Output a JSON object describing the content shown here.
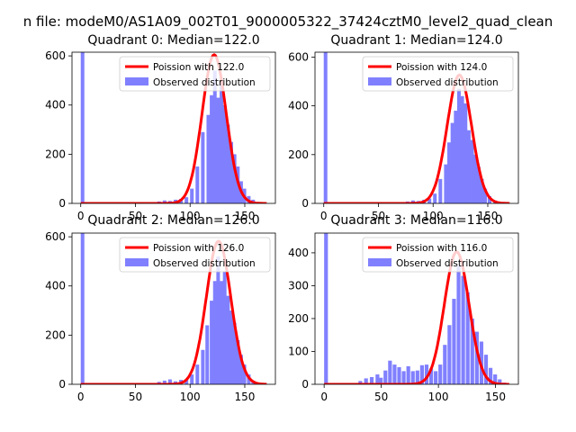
{
  "figure": {
    "suptitle": "n file: modeM0/AS1A09_002T01_9000005322_37424cztM0_level2_quad_clean"
  },
  "chart_data": [
    {
      "type": "bar",
      "title": "Quadrant 0: Median=122.0",
      "xlim": [
        -8,
        178
      ],
      "ylim": [
        0,
        615
      ],
      "xticks": [
        0,
        50,
        100,
        150
      ],
      "yticks": [
        0,
        200,
        400,
        600
      ],
      "legend_position": "top-right",
      "poisson_mean": 122.0,
      "legend": [
        "Poission with 122.0",
        "Observed distribution"
      ],
      "colors": {
        "line": "#ff0000",
        "bars": "#8080ff"
      },
      "bins": [
        [
          0,
          620
        ],
        [
          70,
          8
        ],
        [
          75,
          12
        ],
        [
          80,
          10
        ],
        [
          85,
          15
        ],
        [
          90,
          18
        ],
        [
          95,
          25
        ],
        [
          100,
          60
        ],
        [
          105,
          150
        ],
        [
          110,
          290
        ],
        [
          115,
          360
        ],
        [
          118,
          440
        ],
        [
          121,
          540
        ],
        [
          124,
          430
        ],
        [
          127,
          500
        ],
        [
          130,
          400
        ],
        [
          133,
          320
        ],
        [
          136,
          250
        ],
        [
          139,
          200
        ],
        [
          142,
          150
        ],
        [
          145,
          90
        ],
        [
          148,
          60
        ],
        [
          152,
          30
        ],
        [
          156,
          15
        ],
        [
          160,
          5
        ]
      ]
    },
    {
      "type": "bar",
      "title": "Quadrant 1: Median=124.0",
      "xlim": [
        -8,
        178
      ],
      "ylim": [
        0,
        620
      ],
      "xticks": [
        0,
        50,
        100,
        150
      ],
      "yticks": [
        0,
        200,
        400,
        600
      ],
      "legend_position": "top-right",
      "poisson_mean": 124.0,
      "legend": [
        "Poission with 124.0",
        "Observed distribution"
      ],
      "colors": {
        "line": "#ff0000",
        "bars": "#8080ff"
      },
      "bins": [
        [
          0,
          620
        ],
        [
          70,
          5
        ],
        [
          75,
          8
        ],
        [
          80,
          12
        ],
        [
          85,
          10
        ],
        [
          90,
          15
        ],
        [
          95,
          20
        ],
        [
          100,
          40
        ],
        [
          105,
          100
        ],
        [
          110,
          160
        ],
        [
          113,
          250
        ],
        [
          116,
          330
        ],
        [
          119,
          380
        ],
        [
          122,
          470
        ],
        [
          125,
          440
        ],
        [
          128,
          410
        ],
        [
          131,
          300
        ],
        [
          134,
          260
        ],
        [
          137,
          200
        ],
        [
          140,
          150
        ],
        [
          143,
          100
        ],
        [
          146,
          60
        ],
        [
          150,
          30
        ],
        [
          155,
          12
        ],
        [
          160,
          5
        ]
      ]
    },
    {
      "type": "bar",
      "title": "Quadrant 2: Median=126.0",
      "xlim": [
        -8,
        178
      ],
      "ylim": [
        0,
        615
      ],
      "xticks": [
        0,
        50,
        100,
        150
      ],
      "yticks": [
        0,
        200,
        400,
        600
      ],
      "legend_position": "top-right",
      "poisson_mean": 126.0,
      "legend": [
        "Poission with 126.0",
        "Observed distribution"
      ],
      "colors": {
        "line": "#ff0000",
        "bars": "#8080ff"
      },
      "bins": [
        [
          0,
          620
        ],
        [
          70,
          10
        ],
        [
          75,
          15
        ],
        [
          80,
          20
        ],
        [
          85,
          12
        ],
        [
          90,
          18
        ],
        [
          95,
          20
        ],
        [
          100,
          40
        ],
        [
          105,
          80
        ],
        [
          110,
          140
        ],
        [
          114,
          240
        ],
        [
          118,
          340
        ],
        [
          121,
          420
        ],
        [
          124,
          520
        ],
        [
          127,
          420
        ],
        [
          130,
          460
        ],
        [
          133,
          360
        ],
        [
          136,
          300
        ],
        [
          139,
          250
        ],
        [
          142,
          180
        ],
        [
          145,
          120
        ],
        [
          148,
          80
        ],
        [
          152,
          40
        ],
        [
          156,
          15
        ],
        [
          160,
          5
        ]
      ]
    },
    {
      "type": "bar",
      "title": "Quadrant 3: Median=116.0",
      "xlim": [
        -8,
        170
      ],
      "ylim": [
        0,
        460
      ],
      "xticks": [
        0,
        50,
        100,
        150
      ],
      "yticks": [
        0,
        100,
        200,
        300,
        400
      ],
      "legend_position": "top-right",
      "poisson_mean": 116.0,
      "legend": [
        "Poission with 116.0",
        "Observed distribution"
      ],
      "colors": {
        "line": "#ff0000",
        "bars": "#8080ff"
      },
      "bins": [
        [
          0,
          460
        ],
        [
          30,
          10
        ],
        [
          35,
          18
        ],
        [
          40,
          22
        ],
        [
          45,
          30
        ],
        [
          48,
          20
        ],
        [
          52,
          42
        ],
        [
          56,
          72
        ],
        [
          60,
          60
        ],
        [
          64,
          52
        ],
        [
          68,
          40
        ],
        [
          72,
          55
        ],
        [
          76,
          40
        ],
        [
          80,
          42
        ],
        [
          84,
          58
        ],
        [
          88,
          60
        ],
        [
          92,
          48
        ],
        [
          96,
          40
        ],
        [
          100,
          60
        ],
        [
          104,
          120
        ],
        [
          108,
          180
        ],
        [
          112,
          260
        ],
        [
          116,
          360
        ],
        [
          120,
          330
        ],
        [
          124,
          280
        ],
        [
          128,
          200
        ],
        [
          132,
          160
        ],
        [
          136,
          130
        ],
        [
          140,
          90
        ],
        [
          144,
          50
        ],
        [
          148,
          30
        ],
        [
          152,
          15
        ],
        [
          156,
          5
        ]
      ]
    }
  ]
}
